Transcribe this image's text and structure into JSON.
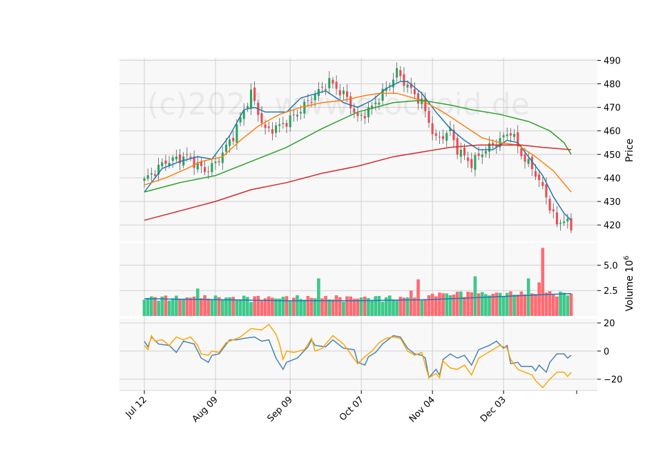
{
  "watermark": "(c)2024 www.stockoid.de",
  "chart_data": {
    "type": "candlestick",
    "x_tick_labels": [
      "Jul 12",
      "Aug 09",
      "Sep 09",
      "Oct 07",
      "Nov 04",
      "Dec 03"
    ],
    "x_tick_days": [
      0,
      20,
      41,
      61,
      81,
      101
    ],
    "trading_days": 120,
    "price_panel": {
      "ylabel": "Price",
      "ylim": [
        413,
        491
      ],
      "yticks": [
        420,
        430,
        440,
        450,
        460,
        470,
        480,
        490
      ],
      "close_keypoints": [
        [
          0,
          439
        ],
        [
          6,
          447
        ],
        [
          12,
          449
        ],
        [
          17,
          443
        ],
        [
          20,
          446
        ],
        [
          25,
          458
        ],
        [
          30,
          476
        ],
        [
          34,
          460
        ],
        [
          38,
          462
        ],
        [
          42,
          466
        ],
        [
          47,
          474
        ],
        [
          52,
          481
        ],
        [
          57,
          474
        ],
        [
          60,
          465
        ],
        [
          64,
          470
        ],
        [
          68,
          478
        ],
        [
          71,
          485
        ],
        [
          74,
          479
        ],
        [
          78,
          472
        ],
        [
          80,
          464
        ],
        [
          82,
          456
        ],
        [
          86,
          460
        ],
        [
          88,
          452
        ],
        [
          92,
          446
        ],
        [
          95,
          451
        ],
        [
          100,
          456
        ],
        [
          103,
          460
        ],
        [
          106,
          450
        ],
        [
          110,
          442
        ],
        [
          113,
          432
        ],
        [
          116,
          420
        ],
        [
          118,
          423
        ],
        [
          120,
          418
        ]
      ],
      "ma_lines": [
        {
          "color": "#1f77b4",
          "keypoints": [
            [
              0,
              434
            ],
            [
              5,
              444
            ],
            [
              10,
              447
            ],
            [
              15,
              449
            ],
            [
              19,
              448
            ],
            [
              24,
              458
            ],
            [
              28,
              469
            ],
            [
              31,
              470
            ],
            [
              34,
              468
            ],
            [
              40,
              468
            ],
            [
              44,
              474
            ],
            [
              51,
              477
            ],
            [
              56,
              472
            ],
            [
              60,
              470
            ],
            [
              64,
              473
            ],
            [
              68,
              478
            ],
            [
              72,
              481
            ],
            [
              74,
              481
            ],
            [
              78,
              476
            ],
            [
              82,
              468
            ],
            [
              86,
              461
            ],
            [
              90,
              456
            ],
            [
              94,
              452
            ],
            [
              98,
              452
            ],
            [
              102,
              456
            ],
            [
              105,
              455
            ],
            [
              108,
              449
            ],
            [
              112,
              441
            ],
            [
              115,
              432
            ],
            [
              118,
              425
            ],
            [
              120,
              422
            ]
          ]
        },
        {
          "color": "#ff7f0e",
          "keypoints": [
            [
              0,
              437
            ],
            [
              6,
              440
            ],
            [
              12,
              444
            ],
            [
              16,
              447
            ],
            [
              22,
              449
            ],
            [
              27,
              456
            ],
            [
              32,
              462
            ],
            [
              38,
              467
            ],
            [
              44,
              470
            ],
            [
              50,
              472
            ],
            [
              56,
              473
            ],
            [
              62,
              475
            ],
            [
              66,
              476
            ],
            [
              71,
              476
            ],
            [
              78,
              473
            ],
            [
              84,
              468
            ],
            [
              90,
              462
            ],
            [
              95,
              457
            ],
            [
              100,
              455
            ],
            [
              105,
              454
            ],
            [
              110,
              449
            ],
            [
              115,
              443
            ],
            [
              120,
              434
            ]
          ]
        },
        {
          "color": "#2ca02c",
          "keypoints": [
            [
              0,
              434
            ],
            [
              10,
              438
            ],
            [
              20,
              441
            ],
            [
              30,
              447
            ],
            [
              40,
              453
            ],
            [
              50,
              461
            ],
            [
              60,
              468
            ],
            [
              70,
              472
            ],
            [
              78,
              473
            ],
            [
              86,
              471
            ],
            [
              92,
              469
            ],
            [
              100,
              467
            ],
            [
              108,
              464
            ],
            [
              114,
              460
            ],
            [
              118,
              455
            ],
            [
              120,
              450
            ]
          ]
        },
        {
          "color": "#d62728",
          "keypoints": [
            [
              0,
              422
            ],
            [
              10,
              426
            ],
            [
              20,
              430
            ],
            [
              30,
              435
            ],
            [
              40,
              438
            ],
            [
              50,
              442
            ],
            [
              60,
              445
            ],
            [
              70,
              449
            ],
            [
              78,
              451
            ],
            [
              86,
              453
            ],
            [
              94,
              454
            ],
            [
              100,
              454
            ],
            [
              106,
              454
            ],
            [
              112,
              453
            ],
            [
              120,
              452
            ]
          ]
        }
      ]
    },
    "volume_panel": {
      "ylabel": "Volume",
      "unit_label": "10",
      "unit_exponent": "6",
      "ylim": [
        0,
        7.2
      ],
      "yticks": [
        2.5,
        5.0
      ],
      "ytick_labels": [
        "2.5",
        "5.0"
      ],
      "spikes": [
        [
          15,
          2.7
        ],
        [
          49,
          3.7
        ],
        [
          75,
          2.5
        ],
        [
          77,
          3.6
        ],
        [
          89,
          2.4
        ],
        [
          93,
          3.9
        ],
        [
          104,
          2.1
        ],
        [
          108,
          3.7
        ],
        [
          111,
          3.3
        ],
        [
          112,
          6.7
        ],
        [
          113,
          2.3
        ]
      ],
      "ma_keypoints": [
        [
          0,
          1.7
        ],
        [
          20,
          1.6
        ],
        [
          40,
          1.5
        ],
        [
          60,
          1.5
        ],
        [
          80,
          1.6
        ],
        [
          100,
          1.9
        ],
        [
          112,
          2.1
        ],
        [
          120,
          2.2
        ]
      ]
    },
    "oscillator_panel": {
      "ylim": [
        -28,
        23
      ],
      "yticks": [
        -20,
        0,
        20
      ],
      "ytick_labels": [
        "−20",
        "0",
        "20"
      ],
      "series": [
        {
          "color": "#4682b4",
          "keypoints": [
            [
              0,
              7
            ],
            [
              1,
              3
            ],
            [
              2,
              10
            ],
            [
              4,
              5
            ],
            [
              7,
              4
            ],
            [
              9,
              -1
            ],
            [
              11,
              7
            ],
            [
              14,
              5
            ],
            [
              16,
              -5
            ],
            [
              18,
              -8
            ],
            [
              19,
              -3
            ],
            [
              21,
              -2
            ],
            [
              24,
              8
            ],
            [
              26,
              8
            ],
            [
              28,
              9
            ],
            [
              31,
              10
            ],
            [
              33,
              7
            ],
            [
              35,
              8
            ],
            [
              37,
              -5
            ],
            [
              39,
              -13
            ],
            [
              40,
              -8
            ],
            [
              43,
              -5
            ],
            [
              46,
              3
            ],
            [
              47,
              8
            ],
            [
              48,
              4
            ],
            [
              51,
              3
            ],
            [
              53,
              8
            ],
            [
              56,
              2
            ],
            [
              59,
              1
            ],
            [
              60,
              -8
            ],
            [
              62,
              -10
            ],
            [
              63,
              -4
            ],
            [
              65,
              -1
            ],
            [
              67,
              5
            ],
            [
              70,
              11
            ],
            [
              72,
              10
            ],
            [
              74,
              2
            ],
            [
              76,
              -2
            ],
            [
              78,
              -3
            ],
            [
              79,
              -5
            ],
            [
              80,
              -19
            ],
            [
              82,
              -13
            ],
            [
              83,
              -17
            ],
            [
              84,
              -6
            ],
            [
              86,
              -2
            ],
            [
              88,
              -5
            ],
            [
              90,
              -3
            ],
            [
              92,
              -10
            ],
            [
              94,
              1
            ],
            [
              97,
              4
            ],
            [
              99,
              7
            ],
            [
              101,
              2
            ],
            [
              102,
              4
            ],
            [
              103,
              -9
            ],
            [
              105,
              -8
            ],
            [
              106,
              -11
            ],
            [
              109,
              -11
            ],
            [
              110,
              -14
            ],
            [
              111,
              -10
            ],
            [
              113,
              -15
            ],
            [
              114,
              -8
            ],
            [
              116,
              -2
            ],
            [
              118,
              -2
            ],
            [
              119,
              -5
            ],
            [
              120,
              -3
            ]
          ]
        },
        {
          "color": "#ffa500",
          "keypoints": [
            [
              0,
              4
            ],
            [
              1,
              1
            ],
            [
              2,
              11
            ],
            [
              3,
              7
            ],
            [
              5,
              8
            ],
            [
              7,
              4
            ],
            [
              9,
              10
            ],
            [
              11,
              8
            ],
            [
              13,
              10
            ],
            [
              15,
              4
            ],
            [
              16,
              -2
            ],
            [
              18,
              -3
            ],
            [
              19,
              0
            ],
            [
              21,
              -1
            ],
            [
              23,
              6
            ],
            [
              25,
              8
            ],
            [
              27,
              10
            ],
            [
              30,
              16
            ],
            [
              33,
              15
            ],
            [
              35,
              19
            ],
            [
              37,
              12
            ],
            [
              38,
              5
            ],
            [
              39,
              -6
            ],
            [
              40,
              0
            ],
            [
              42,
              -1
            ],
            [
              45,
              1
            ],
            [
              47,
              9
            ],
            [
              48,
              0
            ],
            [
              50,
              2
            ],
            [
              53,
              11
            ],
            [
              56,
              5
            ],
            [
              58,
              -2
            ],
            [
              60,
              -9
            ],
            [
              62,
              -4
            ],
            [
              64,
              0
            ],
            [
              66,
              6
            ],
            [
              68,
              9
            ],
            [
              70,
              10
            ],
            [
              72,
              9
            ],
            [
              74,
              0
            ],
            [
              76,
              -3
            ],
            [
              78,
              -1
            ],
            [
              80,
              -19
            ],
            [
              82,
              -16
            ],
            [
              83,
              -19
            ],
            [
              84,
              -7
            ],
            [
              86,
              -12
            ],
            [
              88,
              -13
            ],
            [
              90,
              -10
            ],
            [
              92,
              -17
            ],
            [
              94,
              -5
            ],
            [
              96,
              -2
            ],
            [
              98,
              1
            ],
            [
              100,
              4
            ],
            [
              102,
              2
            ],
            [
              103,
              -6
            ],
            [
              105,
              -13
            ],
            [
              107,
              -15
            ],
            [
              109,
              -17
            ],
            [
              110,
              -21
            ],
            [
              112,
              -26
            ],
            [
              114,
              -20
            ],
            [
              116,
              -15
            ],
            [
              118,
              -15
            ],
            [
              119,
              -18
            ],
            [
              120,
              -15
            ]
          ]
        }
      ]
    }
  }
}
